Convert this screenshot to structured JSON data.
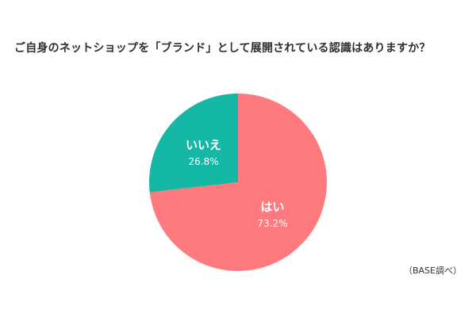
{
  "title": "ご自身のネットショップを「ブランド」として展開されている認識はありますか？",
  "source_note": "（BASE調べ）",
  "colors": {
    "yes": "#ff7a7e",
    "no": "#14b8a5",
    "label": "#ffffff"
  },
  "chart_data": {
    "type": "pie",
    "title": "ご自身のネットショップを「ブランド」として展開されている認識はありますか？",
    "slices": [
      {
        "label": "はい",
        "value": 73.2,
        "value_label": "73.2%",
        "color": "#ff7a7e"
      },
      {
        "label": "いいえ",
        "value": 26.8,
        "value_label": "26.8%",
        "color": "#14b8a5"
      }
    ],
    "start": "12 o'clock, clockwise"
  }
}
